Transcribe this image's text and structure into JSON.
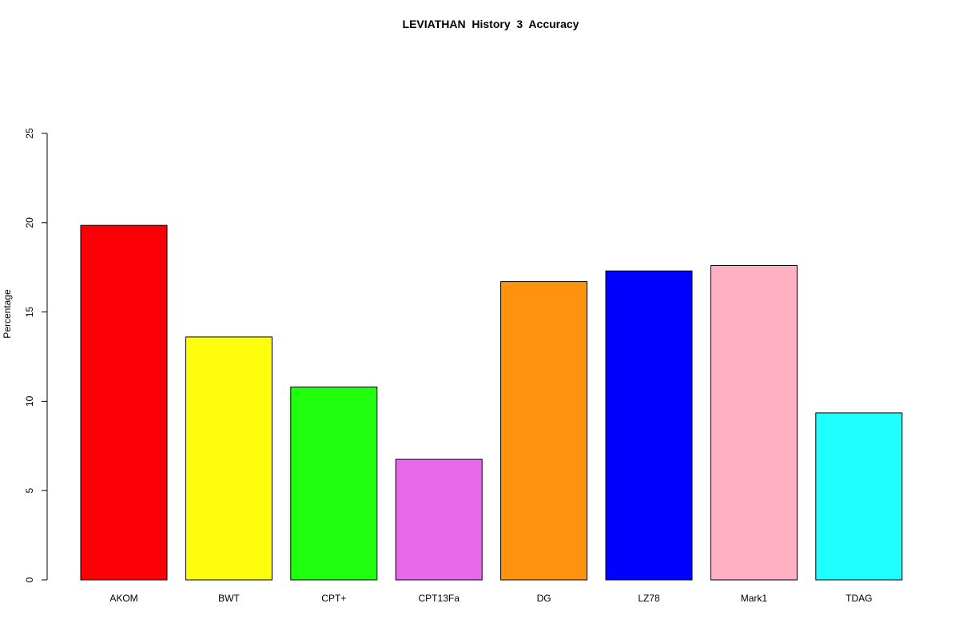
{
  "chart_data": {
    "type": "bar",
    "title": "LEVIATHAN  History  3  Accuracy",
    "xlabel": "",
    "ylabel": "Percentage",
    "ylim": [
      0,
      25
    ],
    "yticks": [
      "0",
      "5",
      "10",
      "15",
      "20",
      "25"
    ],
    "grid": false,
    "categories": [
      "AKOM",
      "BWT",
      "CPT+",
      "CPT13Fa",
      "DG",
      "LZ78",
      "Mark1",
      "TDAG"
    ],
    "values": [
      19.85,
      13.6,
      10.8,
      6.75,
      16.7,
      17.3,
      17.6,
      9.35
    ],
    "colors": [
      "#fa0006",
      "#fffd0e",
      "#20ff0e",
      "#e569e9",
      "#ff930e",
      "#0000ff",
      "#ffb1c3",
      "#20ffff"
    ]
  }
}
